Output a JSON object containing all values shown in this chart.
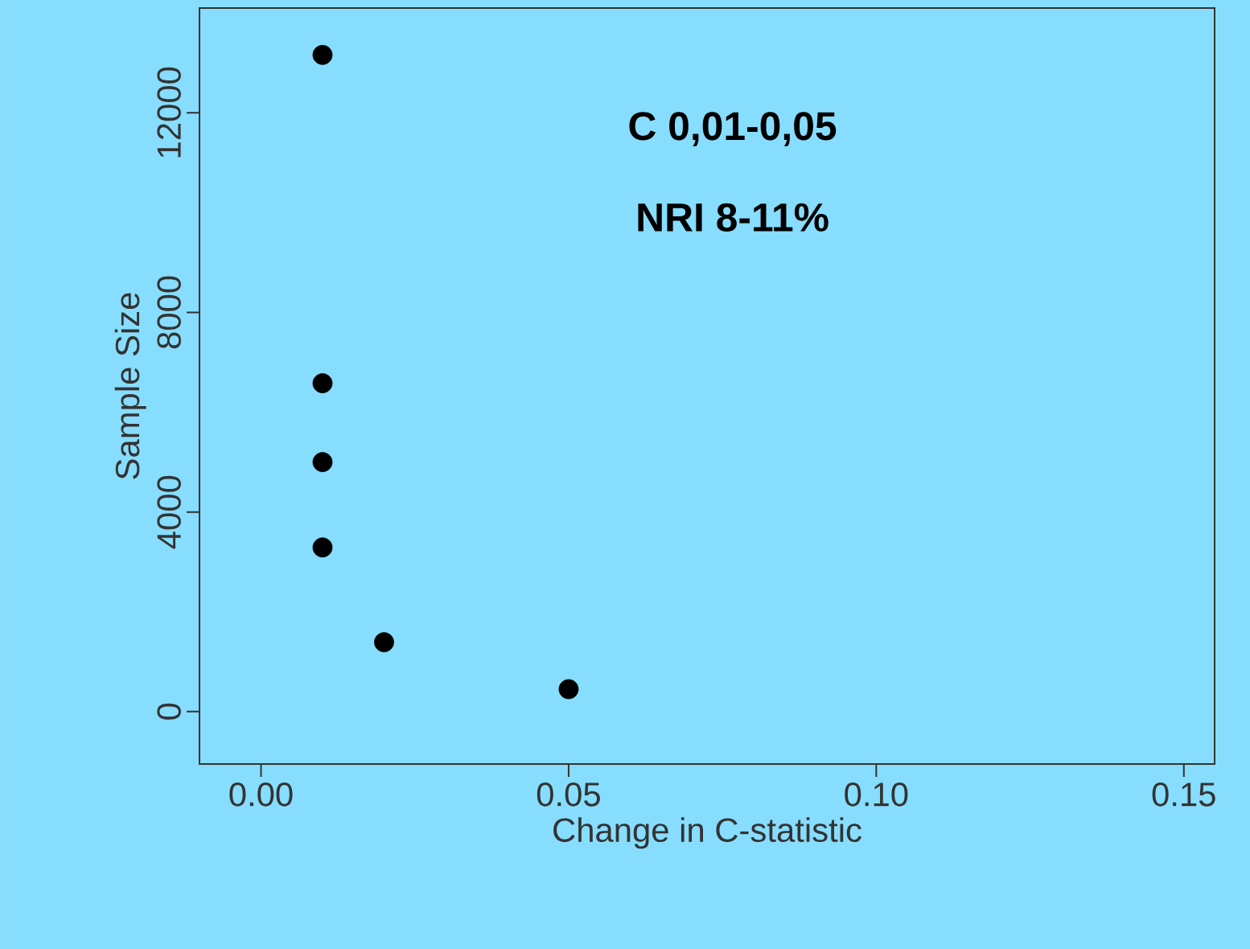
{
  "chart_data": {
    "type": "scatter",
    "xlabel": "Change in C-statistic",
    "ylabel": "Sample Size",
    "annotations": [
      "**C 0,01-0,05**",
      "**NRI 8-11%**"
    ],
    "x": [
      0.01,
      0.01,
      0.01,
      0.01,
      0.02,
      0.05
    ],
    "values": [
      13160,
      6580,
      5000,
      3290,
      1390,
      450
    ],
    "color": "#000000",
    "marker": "circle",
    "xlim": [
      -0.01,
      0.155
    ],
    "ylim": [
      -1050,
      14100
    ],
    "xticks": [
      {
        "value": 0,
        "label": "0.00"
      },
      {
        "value": 0.05,
        "label": "0.05"
      },
      {
        "value": 0.1,
        "label": "0.10"
      },
      {
        "value": 0.15,
        "label": "0.15"
      }
    ],
    "yticks": [
      0,
      4000,
      8000,
      12000
    ]
  }
}
